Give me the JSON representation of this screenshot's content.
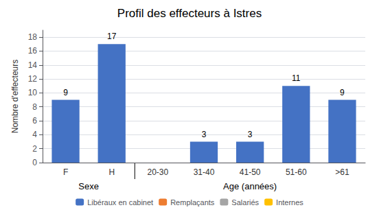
{
  "chart_data": {
    "type": "bar",
    "title": "Profil des effecteurs à Istres",
    "ylabel": "Nombre d'effecteurs",
    "categories": [
      "F",
      "H",
      "20-30",
      "31-40",
      "41-50",
      "51-60",
      ">61"
    ],
    "groups": [
      "Sexe",
      "Sexe",
      "Age (années)",
      "Age (années)",
      "Age (années)",
      "Age (années)",
      "Age (années)"
    ],
    "series": [
      {
        "name": "Libéraux en cabinet",
        "color": "#4472C4",
        "values": [
          9,
          17,
          0,
          3,
          3,
          11,
          9
        ],
        "value_labels": [
          "9",
          "17",
          null,
          "3",
          "3",
          "11",
          "9"
        ]
      },
      {
        "name": "Remplaçants",
        "color": "#ED7D31",
        "values": [
          null,
          null,
          null,
          null,
          null,
          null,
          null
        ]
      },
      {
        "name": "Salariés",
        "color": "#A5A5A5",
        "values": [
          null,
          null,
          null,
          null,
          null,
          null,
          null
        ]
      },
      {
        "name": "Internes",
        "color": "#FFC000",
        "values": [
          null,
          null,
          null,
          null,
          null,
          null,
          null
        ]
      }
    ],
    "ylim": [
      0,
      19
    ],
    "yticks": [
      0,
      2,
      4,
      6,
      8,
      10,
      12,
      14,
      16,
      18
    ],
    "grid": true,
    "legend": "bottom",
    "data_labels": true
  }
}
